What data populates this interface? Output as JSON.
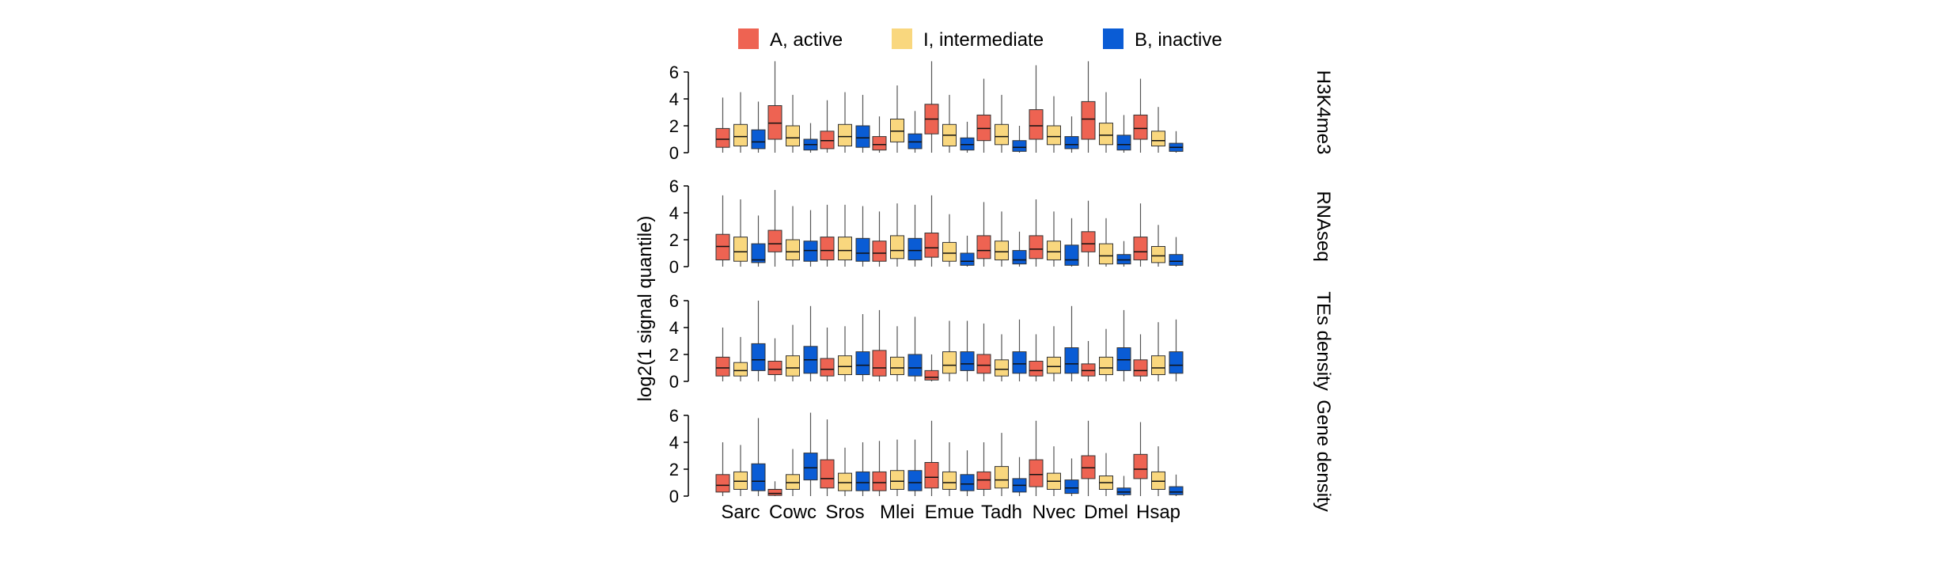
{
  "chart_data": {
    "type": "boxplot",
    "legend": {
      "placement": "top",
      "items": [
        {
          "label": "A, active",
          "color": "#EE6352"
        },
        {
          "label": "I, intermediate",
          "color": "#F9D77E"
        },
        {
          "label": "B, inactive",
          "color": "#0A5CD5"
        }
      ]
    },
    "ylabel": "log2(1 + signal quantile)",
    "ylabel_visible": "log2(1 signal quantile)",
    "ylim": [
      0,
      6
    ],
    "yticks": [
      0,
      2,
      4,
      6
    ],
    "categories": [
      "Sarc",
      "Cowc",
      "Sros",
      "Mlei",
      "Emue",
      "Tadh",
      "Nvec",
      "Dmel",
      "Hsap"
    ],
    "groups": [
      "A, active",
      "I, intermediate",
      "B, inactive"
    ],
    "panels": [
      {
        "label": "H3K4me3",
        "boxes": [
          [
            [
              0,
              0.4,
              1.0,
              1.8,
              4.1
            ],
            [
              0,
              0.5,
              1.2,
              2.1,
              4.5
            ],
            [
              0,
              0.3,
              0.8,
              1.7,
              3.8
            ]
          ],
          [
            [
              0,
              1.0,
              2.2,
              3.5,
              6.8
            ],
            [
              0,
              0.5,
              1.1,
              2.0,
              4.3
            ],
            [
              0,
              0.2,
              0.6,
              1.0,
              2.2
            ]
          ],
          [
            [
              0,
              0.3,
              0.9,
              1.6,
              3.9
            ],
            [
              0,
              0.5,
              1.2,
              2.1,
              4.5
            ],
            [
              0,
              0.4,
              1.1,
              2.0,
              4.3
            ]
          ],
          [
            [
              0,
              0.2,
              0.6,
              1.2,
              2.7
            ],
            [
              0,
              0.8,
              1.6,
              2.5,
              5.0
            ],
            [
              0,
              0.3,
              0.8,
              1.4,
              3.1
            ]
          ],
          [
            [
              0,
              1.4,
              2.5,
              3.6,
              6.8
            ],
            [
              0,
              0.5,
              1.3,
              2.1,
              4.3
            ],
            [
              0,
              0.2,
              0.6,
              1.1,
              2.3
            ]
          ],
          [
            [
              0,
              0.9,
              1.8,
              2.8,
              5.5
            ],
            [
              0,
              0.6,
              1.2,
              2.1,
              4.3
            ],
            [
              0,
              0.1,
              0.4,
              0.9,
              2.0
            ]
          ],
          [
            [
              0,
              1.0,
              2.0,
              3.2,
              6.5
            ],
            [
              0,
              0.6,
              1.2,
              2.0,
              4.2
            ],
            [
              0,
              0.3,
              0.6,
              1.2,
              2.7
            ]
          ],
          [
            [
              0,
              1.0,
              2.5,
              3.8,
              6.8
            ],
            [
              0,
              0.6,
              1.3,
              2.2,
              4.5
            ],
            [
              0,
              0.2,
              0.6,
              1.3,
              2.8
            ]
          ],
          [
            [
              0,
              1.0,
              1.8,
              2.8,
              5.5
            ],
            [
              0,
              0.5,
              0.9,
              1.6,
              3.4
            ],
            [
              0,
              0.1,
              0.4,
              0.7,
              1.6
            ]
          ]
        ]
      },
      {
        "label": "RNAseq",
        "boxes": [
          [
            [
              0,
              0.5,
              1.5,
              2.4,
              5.3
            ],
            [
              0,
              0.4,
              1.1,
              2.2,
              5.0
            ],
            [
              0,
              0.3,
              0.5,
              1.7,
              3.8
            ]
          ],
          [
            [
              0,
              1.1,
              1.7,
              2.7,
              5.7
            ],
            [
              0,
              0.5,
              1.1,
              2.0,
              4.5
            ],
            [
              0,
              0.4,
              1.2,
              1.9,
              4.2
            ]
          ],
          [
            [
              0,
              0.5,
              1.2,
              2.2,
              4.6
            ],
            [
              0,
              0.5,
              1.2,
              2.2,
              4.6
            ],
            [
              0,
              0.4,
              1.0,
              2.1,
              4.5
            ]
          ],
          [
            [
              0,
              0.4,
              1.0,
              1.9,
              4.1
            ],
            [
              0,
              0.6,
              1.2,
              2.3,
              4.7
            ],
            [
              0,
              0.5,
              1.2,
              2.1,
              4.6
            ]
          ],
          [
            [
              0,
              0.7,
              1.4,
              2.5,
              5.3
            ],
            [
              0,
              0.4,
              1.0,
              1.8,
              3.9
            ],
            [
              0,
              0.1,
              0.4,
              1.0,
              2.3
            ]
          ],
          [
            [
              0,
              0.6,
              1.2,
              2.3,
              4.8
            ],
            [
              0,
              0.5,
              1.1,
              1.9,
              4.1
            ],
            [
              0,
              0.2,
              0.5,
              1.2,
              2.6
            ]
          ],
          [
            [
              0,
              0.6,
              1.3,
              2.3,
              5.0
            ],
            [
              0,
              0.5,
              1.1,
              1.9,
              4.1
            ],
            [
              0,
              0.1,
              0.5,
              1.6,
              3.6
            ]
          ],
          [
            [
              0,
              1.1,
              1.7,
              2.6,
              4.9
            ],
            [
              0,
              0.2,
              0.8,
              1.7,
              3.6
            ],
            [
              0,
              0.2,
              0.5,
              0.9,
              1.9
            ]
          ],
          [
            [
              0,
              0.5,
              1.1,
              2.2,
              4.7
            ],
            [
              0,
              0.3,
              0.8,
              1.5,
              3.1
            ],
            [
              0,
              0.1,
              0.4,
              0.9,
              2.2
            ]
          ]
        ]
      },
      {
        "label": "TEs density",
        "boxes": [
          [
            [
              0,
              0.4,
              1.0,
              1.8,
              4.0
            ],
            [
              0,
              0.4,
              0.8,
              1.4,
              3.3
            ],
            [
              0,
              0.8,
              1.6,
              2.8,
              6.0
            ]
          ],
          [
            [
              0,
              0.5,
              0.9,
              1.5,
              3.2
            ],
            [
              0,
              0.4,
              1.0,
              1.9,
              4.2
            ],
            [
              0,
              0.6,
              1.6,
              2.6,
              5.6
            ]
          ],
          [
            [
              0,
              0.4,
              0.9,
              1.7,
              4.0
            ],
            [
              0,
              0.5,
              1.1,
              1.9,
              4.1
            ],
            [
              0,
              0.5,
              1.2,
              2.2,
              5.0
            ]
          ],
          [
            [
              0,
              0.4,
              1.0,
              2.3,
              5.3
            ],
            [
              0,
              0.5,
              1.0,
              1.8,
              4.1
            ],
            [
              0,
              0.4,
              1.0,
              2.0,
              4.8
            ]
          ],
          [
            [
              0,
              0.1,
              0.3,
              0.8,
              2.0
            ],
            [
              0,
              0.6,
              1.2,
              2.2,
              4.5
            ],
            [
              0,
              0.8,
              1.3,
              2.2,
              4.5
            ]
          ],
          [
            [
              0,
              0.6,
              1.2,
              2.0,
              4.3
            ],
            [
              0,
              0.4,
              0.9,
              1.6,
              3.5
            ],
            [
              0,
              0.6,
              1.3,
              2.2,
              4.6
            ]
          ],
          [
            [
              0,
              0.4,
              0.8,
              1.5,
              3.5
            ],
            [
              0,
              0.6,
              1.1,
              1.8,
              4.1
            ],
            [
              0,
              0.6,
              1.3,
              2.5,
              5.6
            ]
          ],
          [
            [
              0,
              0.4,
              0.8,
              1.3,
              3.0
            ],
            [
              0,
              0.5,
              1.0,
              1.8,
              3.9
            ],
            [
              0,
              0.8,
              1.6,
              2.5,
              5.3
            ]
          ],
          [
            [
              0,
              0.4,
              0.8,
              1.6,
              3.5
            ],
            [
              0,
              0.5,
              1.0,
              1.9,
              4.4
            ],
            [
              0,
              0.6,
              1.2,
              2.2,
              4.6
            ]
          ]
        ]
      },
      {
        "label": "Gene density",
        "boxes": [
          [
            [
              0,
              0.3,
              0.8,
              1.6,
              4.0
            ],
            [
              0,
              0.5,
              1.1,
              1.8,
              3.8
            ],
            [
              0,
              0.4,
              1.1,
              2.4,
              5.8
            ]
          ],
          [
            [
              0,
              0.05,
              0.2,
              0.5,
              1.1
            ],
            [
              0,
              0.5,
              1.0,
              1.6,
              3.5
            ],
            [
              0,
              1.2,
              2.1,
              3.2,
              6.2
            ]
          ],
          [
            [
              0,
              0.6,
              1.3,
              2.7,
              5.7
            ],
            [
              0,
              0.4,
              1.0,
              1.7,
              3.6
            ],
            [
              0,
              0.4,
              1.0,
              1.8,
              4.0
            ]
          ],
          [
            [
              0,
              0.4,
              1.0,
              1.8,
              4.1
            ],
            [
              0,
              0.5,
              1.1,
              1.9,
              4.2
            ],
            [
              0,
              0.4,
              1.0,
              1.9,
              4.2
            ]
          ],
          [
            [
              0,
              0.6,
              1.4,
              2.5,
              5.6
            ],
            [
              0,
              0.5,
              1.0,
              1.8,
              4.0
            ],
            [
              0,
              0.4,
              0.9,
              1.6,
              3.4
            ]
          ],
          [
            [
              0,
              0.5,
              1.2,
              1.8,
              4.0
            ],
            [
              0,
              0.6,
              1.2,
              2.2,
              4.7
            ],
            [
              0,
              0.3,
              0.8,
              1.3,
              2.9
            ]
          ],
          [
            [
              0,
              0.7,
              1.6,
              2.7,
              5.6
            ],
            [
              0,
              0.5,
              1.1,
              1.7,
              3.7
            ],
            [
              0,
              0.2,
              0.6,
              1.2,
              2.8
            ]
          ],
          [
            [
              0,
              1.3,
              2.1,
              3.0,
              5.6
            ],
            [
              0,
              0.5,
              1.0,
              1.5,
              3.2
            ],
            [
              0,
              0.1,
              0.3,
              0.6,
              1.5
            ]
          ],
          [
            [
              0,
              1.3,
              2.0,
              3.1,
              5.5
            ],
            [
              0,
              0.5,
              1.1,
              1.8,
              3.7
            ],
            [
              0,
              0.1,
              0.3,
              0.7,
              1.6
            ]
          ]
        ]
      }
    ]
  }
}
